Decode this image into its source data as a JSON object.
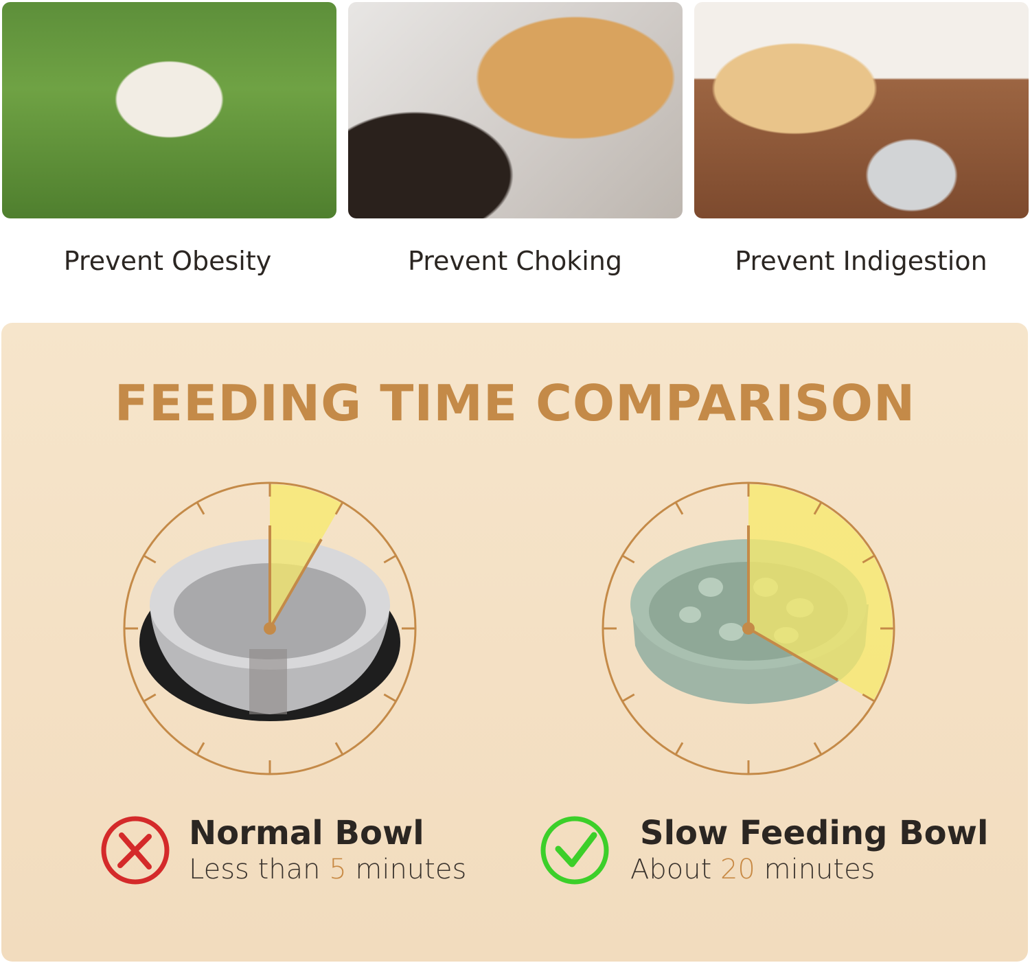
{
  "benefits": [
    {
      "label": "Prevent Obesity",
      "image": "pug-on-grass"
    },
    {
      "label": "Prevent Choking",
      "image": "golden-retriever-mouth-check"
    },
    {
      "label": "Prevent Indigestion",
      "image": "labrador-lying-by-bowl"
    }
  ],
  "comparison": {
    "title": "FEEDING TIME COMPARISON",
    "colors": {
      "accent": "#c48a48",
      "wedge": "#f7ea6a",
      "bad": "#d42a2a",
      "good": "#3ccf2a"
    },
    "normal": {
      "name": "Normal Bowl",
      "prefix": "Less than",
      "number": "5",
      "suffix": "minutes",
      "wedge_minutes": 5,
      "icon": "x-circle-icon"
    },
    "slow": {
      "name": "Slow Feeding Bowl",
      "prefix": "About",
      "number": "20",
      "suffix": "minutes",
      "wedge_minutes": 20,
      "icon": "check-circle-icon"
    }
  }
}
